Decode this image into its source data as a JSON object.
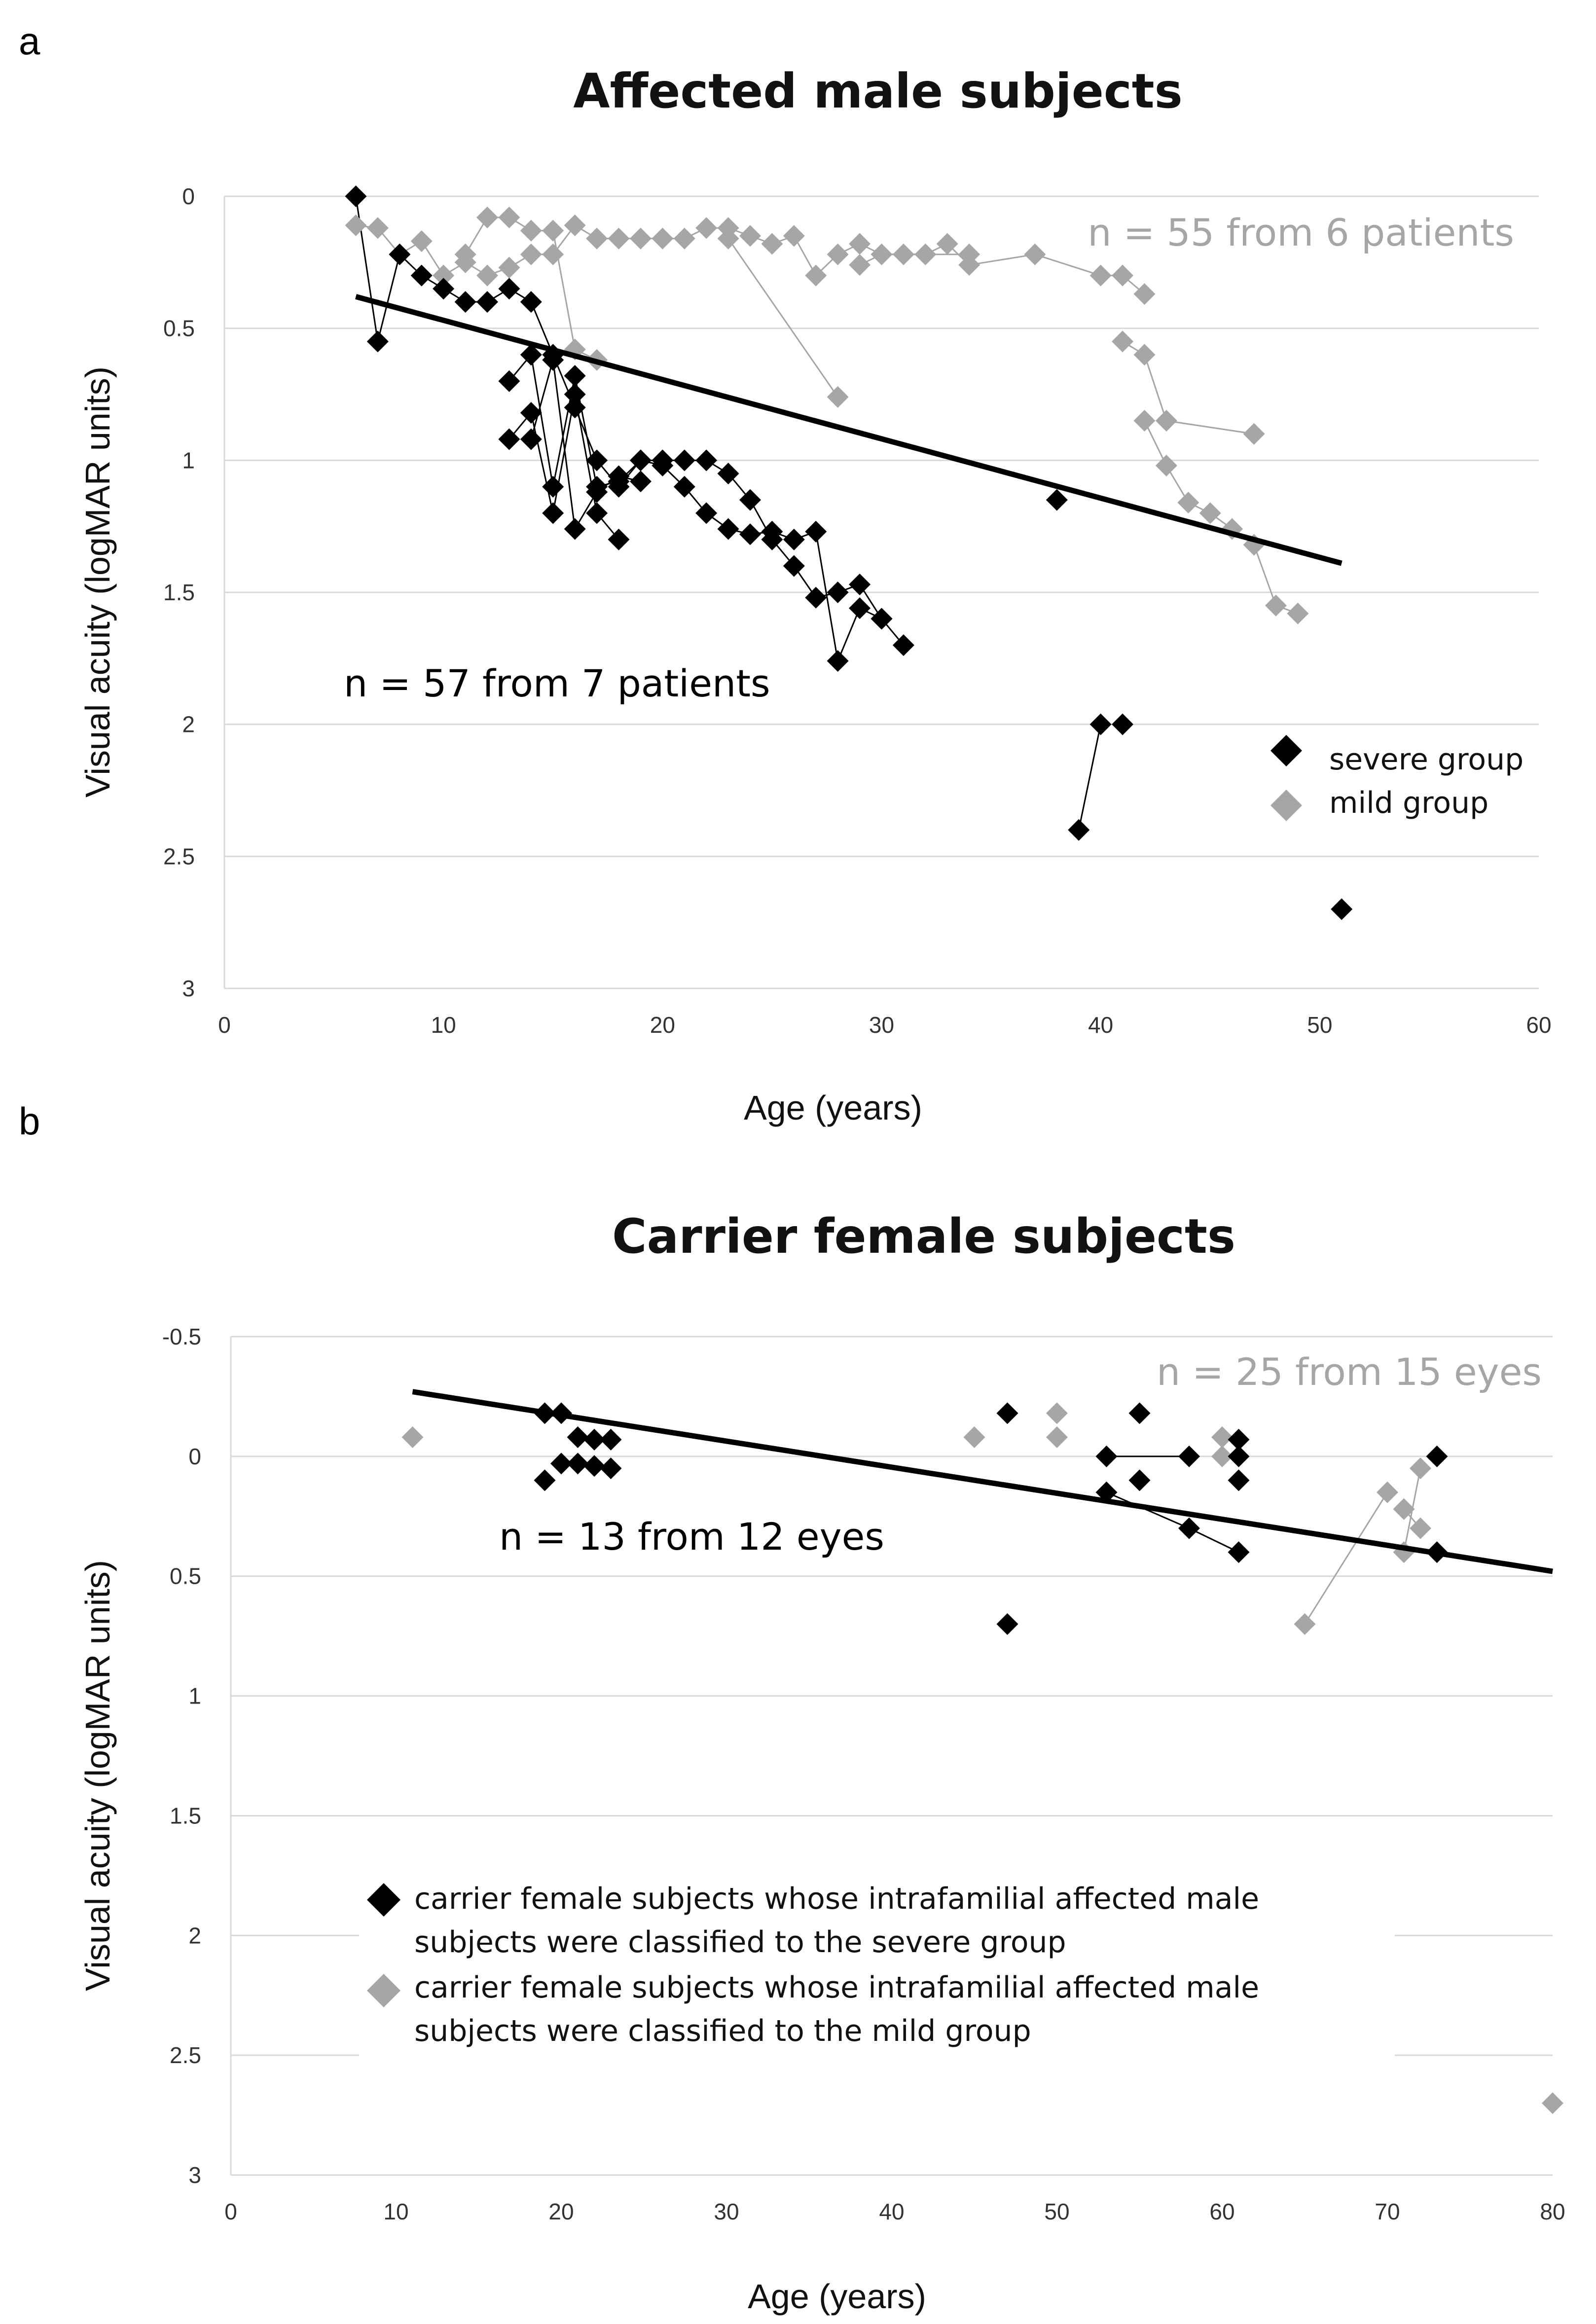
{
  "chart_data": [
    {
      "panel_label": "a",
      "type": "scatter",
      "title": "Affected male subjects",
      "xlabel": "Age (years)",
      "ylabel": "Visual acuity (logMAR units)",
      "xlim": [
        0,
        60
      ],
      "ylim": [
        0,
        3
      ],
      "y_inverted": true,
      "x_ticks": [
        "0",
        "10",
        "20",
        "30",
        "40",
        "50",
        "60"
      ],
      "y_ticks": [
        "0",
        "0.5",
        "1",
        "1.5",
        "2",
        "2.5",
        "3"
      ],
      "grid": "horizontal",
      "colors": {
        "severe": "#000000",
        "mild": "#a6a6a6",
        "line": "#000000",
        "grid": "#d9d9d9"
      },
      "annotations": [
        {
          "text": "n = 55 from 6 patients",
          "color": "#a6a6a6"
        },
        {
          "text": "n = 57 from 7 patients",
          "color": "#000000"
        }
      ],
      "legend": [
        {
          "label": "severe group",
          "color": "#000000"
        },
        {
          "label": "mild group",
          "color": "#a6a6a6"
        }
      ],
      "trendline": {
        "x": [
          6,
          51
        ],
        "y": [
          0.38,
          1.39
        ]
      },
      "series": [
        {
          "name": "severe group",
          "color": "#000000",
          "lines": [
            [
              [
                6,
                0
              ],
              [
                7,
                0.55
              ],
              [
                8,
                0.22
              ],
              [
                9,
                0.3
              ],
              [
                10,
                0.35
              ],
              [
                11,
                0.4
              ],
              [
                12,
                0.4
              ],
              [
                13,
                0.35
              ],
              [
                14,
                0.4
              ],
              [
                15,
                0.6
              ],
              [
                16,
                0.8
              ],
              [
                17,
                1.0
              ],
              [
                18,
                1.1
              ],
              [
                19,
                1.0
              ],
              [
                20,
                1.0
              ],
              [
                21,
                1.0
              ],
              [
                22,
                1.0
              ],
              [
                23,
                1.05
              ],
              [
                24,
                1.15
              ],
              [
                25,
                1.3
              ],
              [
                26,
                1.4
              ],
              [
                27,
                1.52
              ],
              [
                28,
                1.5
              ],
              [
                29,
                1.47
              ],
              [
                30,
                1.6
              ],
              [
                31,
                1.7
              ]
            ],
            [
              [
                13,
                0.7
              ],
              [
                14,
                0.6
              ],
              [
                15,
                1.1
              ],
              [
                16,
                0.68
              ],
              [
                17,
                1.1
              ],
              [
                18,
                1.08
              ],
              [
                19,
                1.0
              ],
              [
                20,
                1.02
              ],
              [
                21,
                1.1
              ],
              [
                22,
                1.2
              ],
              [
                23,
                1.26
              ],
              [
                24,
                1.28
              ],
              [
                25,
                1.27
              ],
              [
                26,
                1.3
              ],
              [
                27,
                1.27
              ],
              [
                28,
                1.76
              ],
              [
                29,
                1.56
              ],
              [
                30,
                1.6
              ]
            ],
            [
              [
                13,
                0.92
              ],
              [
                14,
                0.82
              ],
              [
                15,
                1.2
              ],
              [
                16,
                0.75
              ],
              [
                17,
                1.2
              ],
              [
                18,
                1.3
              ]
            ],
            [
              [
                14,
                0.92
              ],
              [
                15,
                0.62
              ],
              [
                16,
                1.26
              ],
              [
                17,
                1.12
              ],
              [
                18,
                1.06
              ],
              [
                19,
                1.08
              ]
            ],
            [
              [
                39,
                2.4
              ],
              [
                40,
                2.0
              ]
            ]
          ],
          "points": [
            [
              38,
              1.15
            ],
            [
              41,
              2.0
            ],
            [
              51,
              2.7
            ]
          ]
        },
        {
          "name": "mild group",
          "color": "#a6a6a6",
          "lines": [
            [
              [
                6,
                0.11
              ],
              [
                7,
                0.12
              ],
              [
                8,
                0.22
              ],
              [
                9,
                0.17
              ],
              [
                10,
                0.3
              ],
              [
                11,
                0.25
              ],
              [
                12,
                0.3
              ],
              [
                13,
                0.27
              ],
              [
                14,
                0.22
              ],
              [
                15,
                0.22
              ],
              [
                16,
                0.11
              ],
              [
                17,
                0.16
              ],
              [
                18,
                0.16
              ],
              [
                19,
                0.16
              ],
              [
                20,
                0.16
              ],
              [
                21,
                0.16
              ],
              [
                22,
                0.12
              ],
              [
                23,
                0.12
              ],
              [
                24,
                0.15
              ],
              [
                25,
                0.18
              ],
              [
                26,
                0.15
              ],
              [
                27,
                0.3
              ],
              [
                28,
                0.22
              ],
              [
                29,
                0.18
              ],
              [
                30,
                0.22
              ],
              [
                31,
                0.22
              ],
              [
                32,
                0.22
              ],
              [
                33,
                0.18
              ],
              [
                34,
                0.26
              ],
              [
                37,
                0.22
              ],
              [
                40,
                0.3
              ],
              [
                41,
                0.3
              ],
              [
                42,
                0.37
              ]
            ],
            [
              [
                11,
                0.22
              ],
              [
                12,
                0.08
              ],
              [
                13,
                0.08
              ],
              [
                14,
                0.13
              ],
              [
                15,
                0.13
              ],
              [
                16,
                0.58
              ],
              [
                17,
                0.62
              ]
            ],
            [
              [
                23,
                0.16
              ],
              [
                28,
                0.76
              ]
            ],
            [
              [
                29,
                0.26
              ],
              [
                30,
                0.22
              ],
              [
                32,
                0.22
              ],
              [
                34,
                0.22
              ]
            ],
            [
              [
                41,
                0.55
              ],
              [
                42,
                0.6
              ],
              [
                43,
                0.85
              ],
              [
                47,
                0.9
              ]
            ],
            [
              [
                42,
                0.85
              ],
              [
                43,
                1.02
              ],
              [
                44,
                1.16
              ],
              [
                45,
                1.2
              ],
              [
                46,
                1.26
              ],
              [
                47,
                1.32
              ],
              [
                48,
                1.55
              ],
              [
                49,
                1.58
              ]
            ]
          ],
          "points": []
        }
      ]
    },
    {
      "panel_label": "b",
      "type": "scatter",
      "title": "Carrier female subjects",
      "xlabel": "Age (years)",
      "ylabel": "Visual acuity (logMAR units)",
      "xlim": [
        0,
        80
      ],
      "ylim": [
        -0.5,
        3
      ],
      "y_inverted": true,
      "x_ticks": [
        "0",
        "10",
        "20",
        "30",
        "40",
        "50",
        "60",
        "70",
        "80"
      ],
      "y_ticks": [
        "-0.5",
        "0",
        "0.5",
        "1",
        "1.5",
        "2",
        "2.5",
        "3"
      ],
      "grid": "horizontal",
      "colors": {
        "severe": "#000000",
        "mild": "#a6a6a6",
        "line": "#000000",
        "grid": "#d9d9d9"
      },
      "annotations": [
        {
          "text": "n = 25 from 15 eyes",
          "color": "#a6a6a6"
        },
        {
          "text": "n = 13 from 12 eyes",
          "color": "#000000"
        }
      ],
      "legend": [
        {
          "label_line1": "carrier female subjects whose intrafamilial affected male",
          "label_line2": "subjects were classified to the severe group",
          "color": "#000000"
        },
        {
          "label_line1": "carrier female subjects whose intrafamilial affected male",
          "label_line2": "subjects were classified to the mild group",
          "color": "#a6a6a6"
        }
      ],
      "trendline": {
        "x": [
          11,
          80
        ],
        "y": [
          -0.27,
          0.48
        ]
      },
      "series": [
        {
          "name": "severe-related carriers",
          "color": "#000000",
          "lines": [
            [
              [
                53,
                0
              ],
              [
                58,
                0
              ]
            ],
            [
              [
                53,
                0.15
              ],
              [
                58,
                0.3
              ],
              [
                61,
                0.4
              ]
            ]
          ],
          "points": [
            [
              19,
              -0.18
            ],
            [
              20,
              -0.18
            ],
            [
              19,
              0.1
            ],
            [
              20,
              0.03
            ],
            [
              21,
              0.03
            ],
            [
              22,
              0.04
            ],
            [
              23,
              0.05
            ],
            [
              21,
              -0.08
            ],
            [
              22,
              -0.07
            ],
            [
              23,
              -0.07
            ],
            [
              47,
              -0.18
            ],
            [
              47,
              0.7
            ],
            [
              55,
              -0.18
            ],
            [
              55,
              0.1
            ],
            [
              61,
              -0.07
            ],
            [
              61,
              0
            ],
            [
              61,
              0.1
            ],
            [
              73,
              0
            ],
            [
              73,
              0.4
            ]
          ]
        },
        {
          "name": "mild-related carriers",
          "color": "#a6a6a6",
          "lines": [
            [
              [
                65,
                0.7
              ],
              [
                70,
                0.15
              ]
            ],
            [
              [
                71,
                0.22
              ],
              [
                72,
                0.3
              ]
            ],
            [
              [
                71,
                0.4
              ],
              [
                72,
                0.05
              ]
            ]
          ],
          "points": [
            [
              11,
              -0.08
            ],
            [
              45,
              -0.08
            ],
            [
              50,
              -0.18
            ],
            [
              50,
              -0.08
            ],
            [
              60,
              -0.08
            ],
            [
              60,
              0
            ],
            [
              80,
              2.7
            ]
          ]
        }
      ]
    }
  ]
}
